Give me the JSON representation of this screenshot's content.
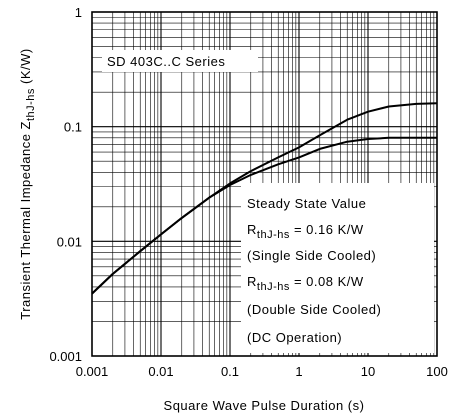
{
  "chart_data": {
    "type": "line",
    "series_label": "SD 403C..C Series",
    "xlabel": "Square Wave Pulse Duration (s)",
    "ylabel_main": "Transient Thermal Impedance Z",
    "ylabel_sub": "thJ-hs",
    "ylabel_unit": " (K/W)",
    "x_scale": "log",
    "y_scale": "log",
    "xlim": [
      0.001,
      100
    ],
    "ylim": [
      0.001,
      1
    ],
    "grid": true,
    "x_ticks": [
      {
        "value": 0.001,
        "label": "0.001"
      },
      {
        "value": 0.01,
        "label": "0.01"
      },
      {
        "value": 0.1,
        "label": "0.1"
      },
      {
        "value": 1,
        "label": "1"
      },
      {
        "value": 10,
        "label": "10"
      },
      {
        "value": 100,
        "label": "100"
      }
    ],
    "y_ticks": [
      {
        "value": 0.001,
        "label": "0.001"
      },
      {
        "value": 0.01,
        "label": "0.01"
      },
      {
        "value": 0.1,
        "label": "0.1"
      },
      {
        "value": 1,
        "label": "1"
      }
    ],
    "series": [
      {
        "id": "single-side-cooled",
        "x": [
          0.001,
          0.002,
          0.005,
          0.01,
          0.02,
          0.05,
          0.1,
          0.2,
          0.5,
          1,
          2,
          5,
          10,
          20,
          50,
          100
        ],
        "y": [
          0.0035,
          0.0052,
          0.0082,
          0.0115,
          0.016,
          0.024,
          0.032,
          0.041,
          0.054,
          0.066,
          0.084,
          0.115,
          0.135,
          0.15,
          0.158,
          0.16
        ]
      },
      {
        "id": "double-side-cooled",
        "x": [
          0.001,
          0.002,
          0.005,
          0.01,
          0.02,
          0.05,
          0.1,
          0.2,
          0.5,
          1,
          2,
          5,
          10,
          20,
          50,
          100
        ],
        "y": [
          0.0035,
          0.0052,
          0.0082,
          0.0115,
          0.016,
          0.024,
          0.031,
          0.038,
          0.047,
          0.054,
          0.064,
          0.074,
          0.078,
          0.08,
          0.08,
          0.08
        ]
      }
    ],
    "annotation": {
      "line1": "Steady State Value",
      "r_main": "R",
      "r_sub": "thJ-hs",
      "value_single": " = 0.16 K/W",
      "note_single": "(Single Side Cooled)",
      "value_double": " = 0.08 K/W",
      "note_double": "(Double Side Cooled)",
      "note_dc": "(DC Operation)"
    }
  }
}
